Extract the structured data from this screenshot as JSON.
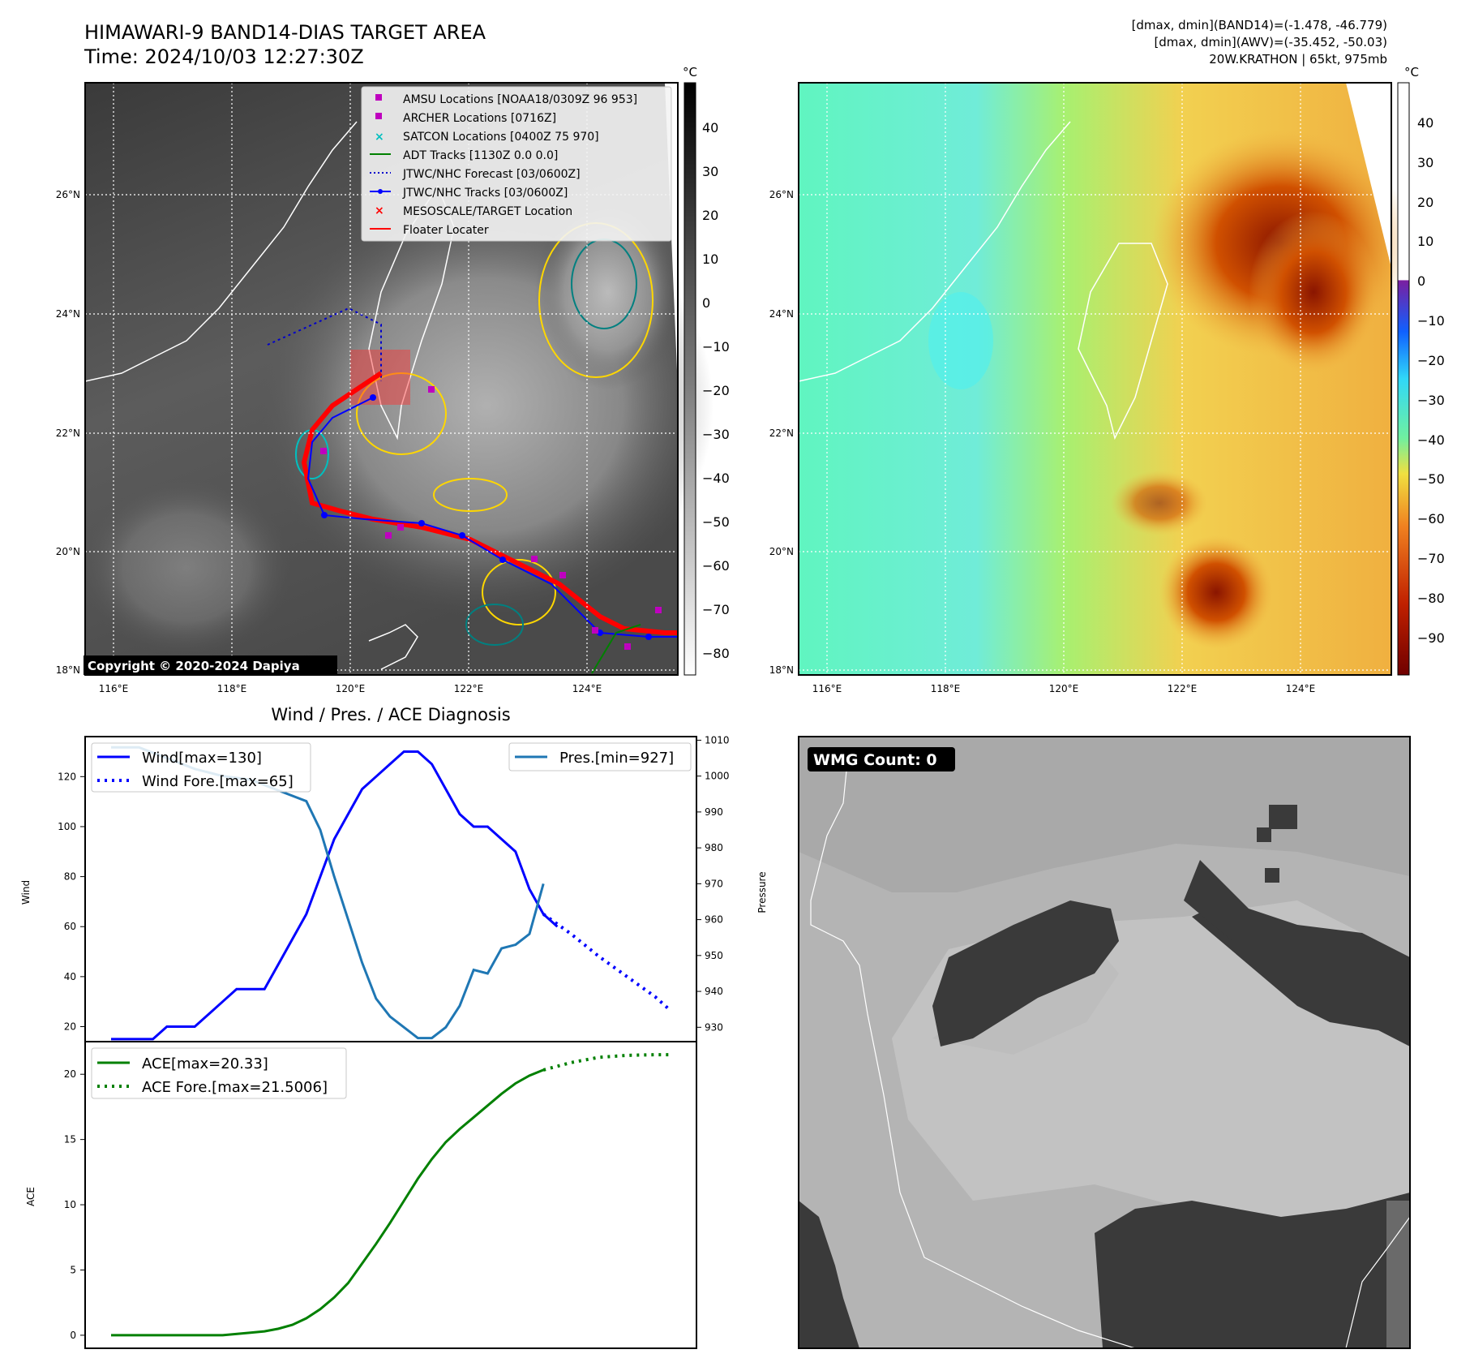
{
  "header": {
    "title_line1": "HIMAWARI-9 BAND14-DIAS TARGET AREA",
    "title_line2": "Time: 2024/10/03 12:27:30Z",
    "info_line1": "[dmax, dmin](BAND14)=(-1.478, -46.779)",
    "info_line2": "[dmax, dmin](AWV)=(-35.452, -50.03)",
    "info_line3": "20W.KRATHON | 65kt, 975mb"
  },
  "map_axes": {
    "lon_labels": [
      "116°E",
      "118°E",
      "120°E",
      "122°E",
      "124°E"
    ],
    "lat_labels": [
      "26°N",
      "24°N",
      "22°N",
      "20°N",
      "18°N"
    ]
  },
  "ir_panel": {
    "copyright": "Copyright © 2020-2024 Dapiya",
    "colorbar_unit": "°C",
    "colorbar_ticks": [
      "40",
      "30",
      "20",
      "10",
      "0",
      "−10",
      "−20",
      "−30",
      "−40",
      "−50",
      "−60",
      "−70",
      "−80"
    ],
    "legend": [
      {
        "label": "AMSU Locations [NOAA18/0309Z 96 953]",
        "color": "#bf00bf"
      },
      {
        "label": "ARCHER Locations [0716Z]",
        "color": "#bf00bf"
      },
      {
        "label": "SATCON Locations [0400Z 75 970]",
        "color": "#00bfbf"
      },
      {
        "label": "ADT Tracks [1130Z 0.0 0.0]",
        "color": "#008000"
      },
      {
        "label": "JTWC/NHC Forecast [03/0600Z]",
        "color": "#0000cc"
      },
      {
        "label": "JTWC/NHC Tracks [03/0600Z]",
        "color": "#0000ff"
      },
      {
        "label": "MESOSCALE/TARGET Location",
        "color": "#ff0000"
      },
      {
        "label": "Floater Locater",
        "color": "#ff0000"
      }
    ]
  },
  "wv_panel": {
    "colorbar_unit": "°C",
    "colorbar_ticks": [
      "40",
      "30",
      "20",
      "10",
      "0",
      "−10",
      "−20",
      "−30",
      "−40",
      "−50",
      "−60",
      "−70",
      "−80",
      "−90"
    ]
  },
  "wmg_panel": {
    "label": "WMG Count: 0"
  },
  "chart_data": [
    {
      "type": "line",
      "title": "Wind / Pres. / ACE Diagnosis",
      "ylabel": "Wind",
      "y2label": "Pressure",
      "ylim": [
        14,
        136
      ],
      "y2lim": [
        926,
        1011
      ],
      "yticks": [
        20,
        40,
        60,
        80,
        100,
        120
      ],
      "y2ticks": [
        930,
        940,
        950,
        960,
        970,
        980,
        990,
        1000,
        1010
      ],
      "x": [
        0,
        1,
        2,
        3,
        4,
        5,
        6,
        7,
        8,
        9,
        10,
        11,
        12,
        13,
        14,
        15,
        16,
        17,
        18,
        19,
        20,
        21,
        22,
        23,
        24,
        25,
        26,
        27,
        28,
        29,
        30,
        31,
        32,
        33,
        34,
        35,
        36,
        37,
        38,
        39,
        40
      ],
      "series": [
        {
          "name": "Wind[max=130]",
          "color": "#0000ff",
          "style": "solid",
          "x": [
            0,
            1,
            2,
            3,
            4,
            5,
            6,
            7,
            8,
            9,
            10,
            11,
            12,
            13,
            14,
            15,
            16,
            17,
            18,
            19,
            20,
            21,
            22,
            23,
            24,
            25,
            26,
            27,
            28,
            29,
            30,
            31,
            32
          ],
          "values": [
            15,
            15,
            15,
            15,
            20,
            20,
            20,
            25,
            30,
            35,
            35,
            35,
            45,
            55,
            65,
            80,
            95,
            105,
            115,
            120,
            125,
            130,
            130,
            125,
            115,
            105,
            100,
            100,
            95,
            90,
            75,
            65,
            60
          ]
        },
        {
          "name": "Wind Fore.[max=65]",
          "color": "#0000ff",
          "style": "dotted",
          "x": [
            31,
            33,
            35,
            37,
            39,
            40
          ],
          "values": [
            65,
            57,
            48,
            40,
            32,
            27
          ]
        },
        {
          "name": "Pres.[min=927]",
          "color": "#1f77b4",
          "style": "solid",
          "axis": "right",
          "x": [
            0,
            2,
            4,
            6,
            8,
            10,
            12,
            14,
            15,
            16,
            17,
            18,
            19,
            20,
            21,
            22,
            23,
            24,
            25,
            26,
            27,
            28,
            29,
            30,
            31
          ],
          "values": [
            1008,
            1008,
            1005,
            1002,
            1000,
            999,
            996,
            993,
            985,
            972,
            960,
            948,
            938,
            933,
            930,
            927,
            927,
            930,
            936,
            946,
            945,
            952,
            953,
            956,
            970
          ]
        }
      ]
    },
    {
      "type": "line",
      "ylabel": "ACE",
      "ylim": [
        -1,
        22.5
      ],
      "yticks": [
        0,
        5,
        10,
        15,
        20
      ],
      "series": [
        {
          "name": "ACE[max=20.33]",
          "color": "#008000",
          "style": "solid",
          "x": [
            0,
            4,
            8,
            10,
            11,
            12,
            13,
            14,
            15,
            16,
            17,
            18,
            19,
            20,
            21,
            22,
            23,
            24,
            25,
            26,
            27,
            28,
            29,
            30,
            31
          ],
          "values": [
            0,
            0,
            0,
            0.2,
            0.3,
            0.5,
            0.8,
            1.3,
            2,
            2.9,
            4,
            5.5,
            7,
            8.6,
            10.3,
            12,
            13.5,
            14.8,
            15.8,
            16.7,
            17.6,
            18.5,
            19.3,
            19.9,
            20.33
          ]
        },
        {
          "name": "ACE Fore.[max=21.5006]",
          "color": "#008000",
          "style": "dotted",
          "x": [
            31,
            33,
            35,
            37,
            39,
            40
          ],
          "values": [
            20.33,
            20.9,
            21.3,
            21.45,
            21.5,
            21.5006
          ]
        }
      ]
    }
  ]
}
